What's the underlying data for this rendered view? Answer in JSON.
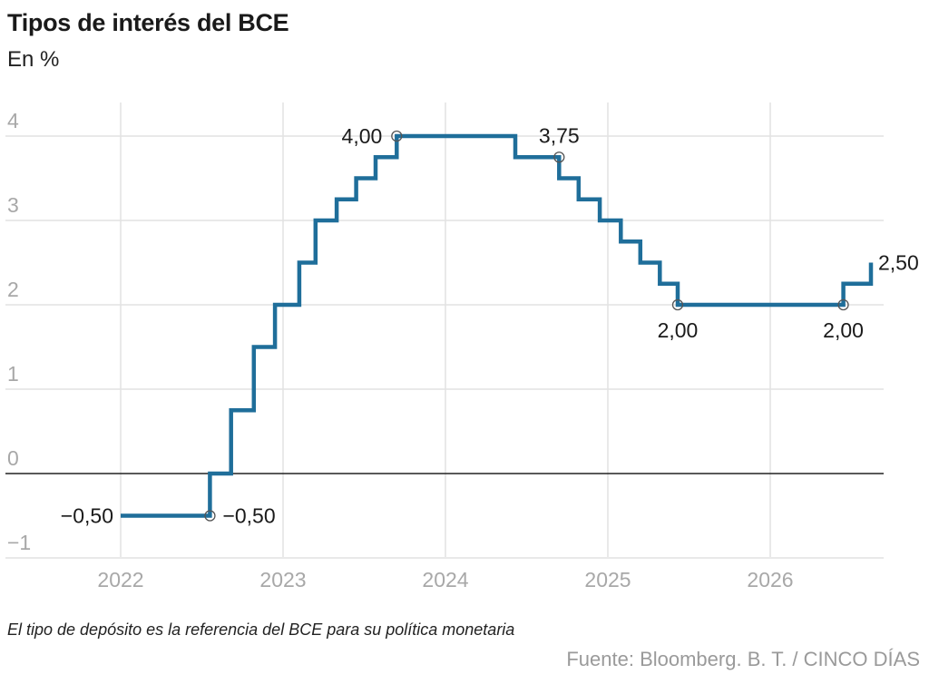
{
  "header": {
    "title": "Tipos de interés del BCE",
    "subtitle": "En %"
  },
  "footer": {
    "note": "El tipo de depósito es la referencia del BCE para su política monetaria",
    "source": "Fuente: Bloomberg. B. T. / CINCO DÍAS"
  },
  "colors": {
    "line": "#1f6e9a",
    "grid": "#e2e2e2",
    "zero_line": "#222222",
    "tick": "#a8a8a8"
  },
  "chart_data": {
    "type": "line",
    "step": true,
    "title": "Tipos de interés del BCE",
    "subtitle": "En %",
    "xlabel": "",
    "ylabel": "",
    "x_ticks": [
      2022,
      2023,
      2024,
      2025,
      2026
    ],
    "y_ticks": [
      -1,
      0,
      1,
      2,
      3,
      4
    ],
    "y_tick_labels": [
      "−1",
      "0",
      "1",
      "2",
      "3",
      "4"
    ],
    "xlim": [
      2021.3,
      2026.8
    ],
    "ylim": [
      -1.0,
      4.3
    ],
    "grid": true,
    "series": [
      {
        "x": [
          2022.0,
          2022.55,
          2022.55,
          2022.68,
          2022.68,
          2022.82,
          2022.82,
          2022.95,
          2022.95,
          2023.1,
          2023.1,
          2023.2,
          2023.2,
          2023.33,
          2023.33,
          2023.45,
          2023.45,
          2023.57,
          2023.57,
          2023.7,
          2023.7,
          2024.43,
          2024.43,
          2024.7,
          2024.7,
          2024.82,
          2024.82,
          2024.95,
          2024.95,
          2025.08,
          2025.08,
          2025.2,
          2025.2,
          2025.32,
          2025.32,
          2025.43,
          2025.43,
          2026.45,
          2026.45,
          2026.62,
          2026.62
        ],
        "y": [
          -0.5,
          -0.5,
          0.0,
          0.0,
          0.75,
          0.75,
          1.5,
          1.5,
          2.0,
          2.0,
          2.5,
          2.5,
          3.0,
          3.0,
          3.25,
          3.25,
          3.5,
          3.5,
          3.75,
          3.75,
          4.0,
          4.0,
          3.75,
          3.75,
          3.5,
          3.5,
          3.25,
          3.25,
          3.0,
          3.0,
          2.75,
          2.75,
          2.5,
          2.5,
          2.25,
          2.25,
          2.0,
          2.0,
          2.25,
          2.25,
          2.5
        ]
      }
    ],
    "annotations": [
      {
        "x": 2022.0,
        "y": -0.5,
        "label": "−0,50",
        "marker": false
      },
      {
        "x": 2022.55,
        "y": -0.5,
        "label": "−0,50",
        "marker": true
      },
      {
        "x": 2023.7,
        "y": 4.0,
        "label": "4,00",
        "marker": true
      },
      {
        "x": 2024.7,
        "y": 3.75,
        "label": "3,75",
        "marker": true
      },
      {
        "x": 2025.43,
        "y": 2.0,
        "label": "2,00",
        "marker": true
      },
      {
        "x": 2026.45,
        "y": 2.0,
        "label": "2,00",
        "marker": true
      },
      {
        "x": 2026.62,
        "y": 2.5,
        "label": "2,50",
        "marker": false
      }
    ]
  }
}
